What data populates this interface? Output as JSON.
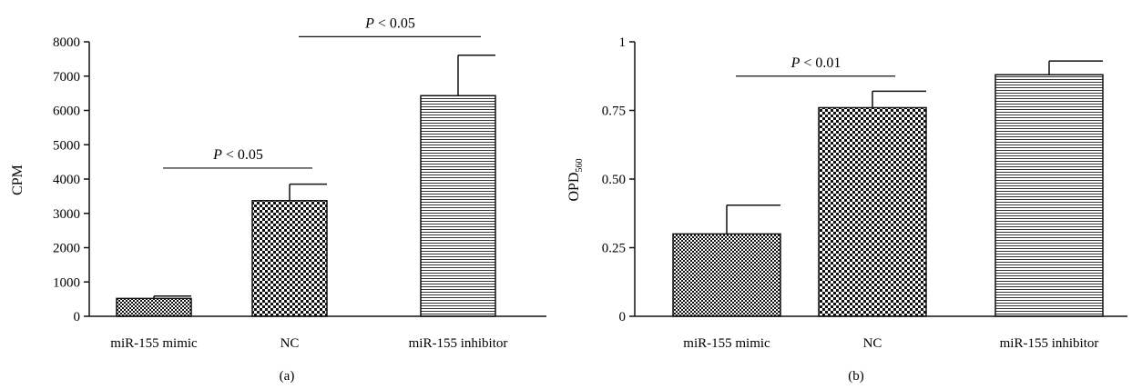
{
  "panels": [
    {
      "panel_label": "(a)",
      "ylabel": "CPM",
      "ylabel_sub": "",
      "yticks": [
        "0",
        "1000",
        "2000",
        "3000",
        "4000",
        "5000",
        "6000",
        "7000",
        "8000"
      ],
      "comparisons": [
        {
          "p_letter": "P",
          "p_text": " < 0.05"
        },
        {
          "p_letter": "P",
          "p_text": " < 0.05"
        }
      ]
    },
    {
      "panel_label": "(b)",
      "ylabel": "OPD",
      "ylabel_sub": "560",
      "yticks": [
        "0",
        "0.25",
        "0.50",
        "0.75",
        "1"
      ],
      "comparisons": [
        {
          "p_letter": "P",
          "p_text": " < 0.01"
        }
      ]
    }
  ],
  "chart_data": [
    {
      "type": "bar",
      "categories": [
        "miR-155 mimic",
        "NC",
        "miR-155 inhibitor"
      ],
      "values": [
        520,
        3370,
        6430
      ],
      "errors": [
        70,
        480,
        1180
      ],
      "patterns": [
        "checker-small",
        "checker-large",
        "horizontal-lines"
      ],
      "ylabel": "CPM",
      "ylim": [
        0,
        8000
      ],
      "yticks": [
        0,
        1000,
        2000,
        3000,
        4000,
        5000,
        6000,
        7000,
        8000
      ],
      "significance": [
        {
          "from": 0,
          "to": 1,
          "label": "P < 0.05",
          "y": 4320
        },
        {
          "from": 1,
          "to": 2,
          "label": "P < 0.05",
          "y": 8150
        }
      ]
    },
    {
      "type": "bar",
      "categories": [
        "miR-155 mimic",
        "NC",
        "miR-155 inhibitor"
      ],
      "values": [
        0.3,
        0.76,
        0.88
      ],
      "errors": [
        0.105,
        0.06,
        0.05
      ],
      "patterns": [
        "checker-small",
        "checker-large",
        "horizontal-lines"
      ],
      "ylabel": "OPD560",
      "ylim": [
        0,
        1
      ],
      "yticks": [
        0,
        0.25,
        0.5,
        0.75,
        1
      ],
      "significance": [
        {
          "from": 0,
          "to": 1,
          "label": "P < 0.01",
          "y": 0.875
        }
      ]
    }
  ]
}
